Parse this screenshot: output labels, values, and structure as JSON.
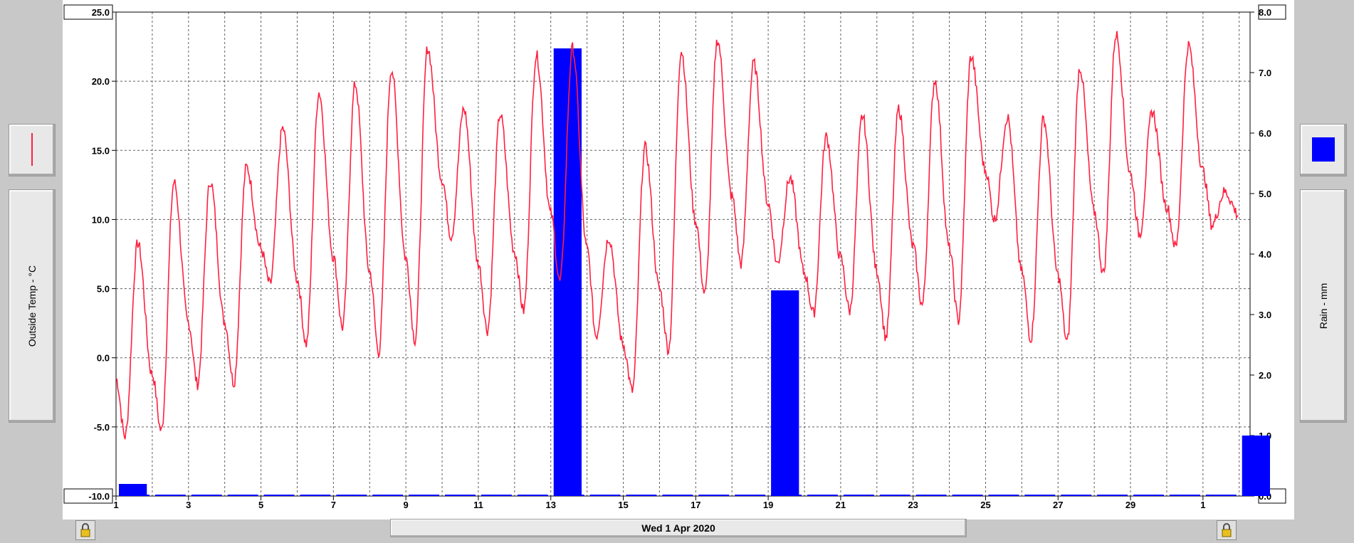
{
  "left_legend": {
    "series_name": "Outside Temp - °C",
    "swatch_color": "#ff2040",
    "icon": "line-swatch-icon"
  },
  "right_legend": {
    "series_name": "Rain - mm",
    "swatch_color": "#0000ff",
    "icon": "bar-swatch-icon"
  },
  "date_label": "Wed 1 Apr 2020",
  "lock_icons": [
    "padlock-icon",
    "padlock-icon"
  ],
  "chart_data": {
    "type": "line",
    "grid": true,
    "x_tick_labels": [
      "1",
      "3",
      "5",
      "7",
      "9",
      "11",
      "13",
      "15",
      "17",
      "19",
      "21",
      "23",
      "25",
      "27",
      "29",
      "1"
    ],
    "y_left": {
      "label": "Outside Temp - °C",
      "range": [
        -10.0,
        25.0
      ],
      "tick_labels": [
        "25.0",
        "20.0",
        "15.0",
        "10.0",
        "5.0",
        "0.0",
        "-5.0",
        "-10.0"
      ]
    },
    "y_right": {
      "label": "Rain - mm",
      "range": [
        0.0,
        8.0
      ],
      "tick_labels": [
        "8.0",
        "7.0",
        "6.0",
        "5.0",
        "4.0",
        "3.0",
        "2.0",
        "1.0",
        "0.0"
      ]
    },
    "series": [
      {
        "name": "Outside Temp - °C",
        "color": "#ff2040",
        "axis": "left",
        "daily_min_max": [
          {
            "day": "Mar 1",
            "min": -5.7,
            "max": 8.3
          },
          {
            "day": "Mar 2",
            "min": -5.3,
            "max": 12.7
          },
          {
            "day": "Mar 3",
            "min": -1.9,
            "max": 12.8
          },
          {
            "day": "Mar 4",
            "min": -1.8,
            "max": 13.8
          },
          {
            "day": "Mar 5",
            "min": 5.3,
            "max": 16.6
          },
          {
            "day": "Mar 6",
            "min": 1.0,
            "max": 19.2
          },
          {
            "day": "Mar 7",
            "min": 2.2,
            "max": 19.8
          },
          {
            "day": "Mar 8",
            "min": 0.4,
            "max": 20.9
          },
          {
            "day": "Mar 9",
            "min": 1.3,
            "max": 22.4
          },
          {
            "day": "Mar 10",
            "min": 8.8,
            "max": 18.0
          },
          {
            "day": "Mar 11",
            "min": 2.0,
            "max": 17.6
          },
          {
            "day": "Mar 12",
            "min": 3.4,
            "max": 21.9
          },
          {
            "day": "Mar 13",
            "min": 5.5,
            "max": 22.4
          },
          {
            "day": "Mar 14",
            "min": 1.6,
            "max": 8.7
          },
          {
            "day": "Mar 15",
            "min": -2.4,
            "max": 15.2
          },
          {
            "day": "Mar 16",
            "min": 0.6,
            "max": 22.2
          },
          {
            "day": "Mar 17",
            "min": 4.6,
            "max": 23.0
          },
          {
            "day": "Mar 18",
            "min": 6.8,
            "max": 21.3
          },
          {
            "day": "Mar 19",
            "min": 6.8,
            "max": 13.0
          },
          {
            "day": "Mar 20",
            "min": 3.2,
            "max": 16.0
          },
          {
            "day": "Mar 21",
            "min": 3.4,
            "max": 17.5
          },
          {
            "day": "Mar 22",
            "min": 1.5,
            "max": 18.0
          },
          {
            "day": "Mar 23",
            "min": 3.8,
            "max": 20.1
          },
          {
            "day": "Mar 24",
            "min": 2.7,
            "max": 21.8
          },
          {
            "day": "Mar 25",
            "min": 10.0,
            "max": 17.4
          },
          {
            "day": "Mar 26",
            "min": 1.4,
            "max": 17.3
          },
          {
            "day": "Mar 27",
            "min": 1.1,
            "max": 21.0
          },
          {
            "day": "Mar 28",
            "min": 6.1,
            "max": 23.4
          },
          {
            "day": "Mar 29",
            "min": 8.9,
            "max": 17.8
          },
          {
            "day": "Mar 30",
            "min": 8.0,
            "max": 22.6
          },
          {
            "day": "Mar 31",
            "min": 9.6,
            "max": 12.0
          }
        ]
      },
      {
        "name": "Rain - mm",
        "type": "bar",
        "color": "#0000ff",
        "axis": "right",
        "daily_totals": [
          {
            "day": "Mar 1",
            "value": 0.2
          },
          {
            "day": "Mar 13",
            "value": 7.4
          },
          {
            "day": "Mar 19",
            "value": 3.4
          },
          {
            "day": "Apr 1",
            "value": 1.0
          }
        ]
      }
    ]
  }
}
